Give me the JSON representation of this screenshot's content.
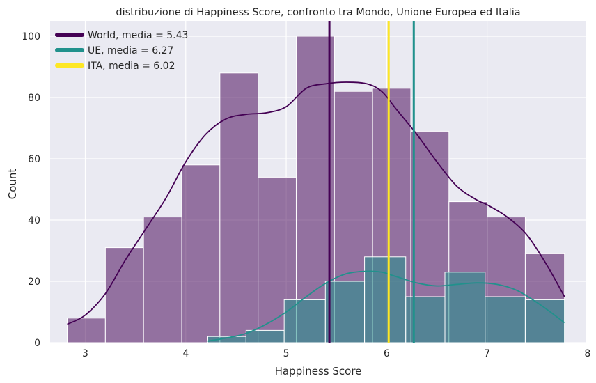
{
  "chart_data": {
    "type": "histogram",
    "title": "distribuzione di Happiness Score, confronto tra Mondo, Unione Europea ed Italia",
    "xlabel": "Happiness Score",
    "ylabel": "Count",
    "xlim": [
      2.65,
      7.98
    ],
    "ylim": [
      0,
      105
    ],
    "xticks": [
      3,
      4,
      5,
      6,
      7,
      8
    ],
    "yticks": [
      0,
      20,
      40,
      60,
      80,
      100
    ],
    "grid": true,
    "legend_position": "top-left",
    "colors": {
      "background": "#eaeaf2",
      "grid": "#ffffff",
      "world_fill": "#440154",
      "eu_fill": "#21918c",
      "ita_line": "#fde725",
      "world_line": "#440154",
      "eu_line": "#21918c"
    },
    "world": {
      "bins": [
        {
          "x0": 2.82,
          "x1": 3.2,
          "count": 8
        },
        {
          "x0": 3.2,
          "x1": 3.58,
          "count": 31
        },
        {
          "x0": 3.58,
          "x1": 3.96,
          "count": 41
        },
        {
          "x0": 3.96,
          "x1": 4.34,
          "count": 58
        },
        {
          "x0": 4.34,
          "x1": 4.72,
          "count": 88
        },
        {
          "x0": 4.72,
          "x1": 5.1,
          "count": 54
        },
        {
          "x0": 5.1,
          "x1": 5.48,
          "count": 100
        },
        {
          "x0": 5.48,
          "x1": 5.86,
          "count": 82
        },
        {
          "x0": 5.86,
          "x1": 6.24,
          "count": 83
        },
        {
          "x0": 6.24,
          "x1": 6.62,
          "count": 69
        },
        {
          "x0": 6.62,
          "x1": 7.0,
          "count": 46
        },
        {
          "x0": 7.0,
          "x1": 7.38,
          "count": 41
        },
        {
          "x0": 7.38,
          "x1": 7.77,
          "count": 29
        }
      ],
      "kde": [
        [
          2.82,
          6
        ],
        [
          3.0,
          9
        ],
        [
          3.2,
          16
        ],
        [
          3.4,
          27
        ],
        [
          3.6,
          37
        ],
        [
          3.8,
          47
        ],
        [
          4.0,
          59
        ],
        [
          4.2,
          68
        ],
        [
          4.4,
          73
        ],
        [
          4.6,
          74.5
        ],
        [
          4.8,
          75
        ],
        [
          5.0,
          77
        ],
        [
          5.2,
          83
        ],
        [
          5.4,
          84.5
        ],
        [
          5.6,
          85
        ],
        [
          5.8,
          84.5
        ],
        [
          5.95,
          82
        ],
        [
          6.1,
          76
        ],
        [
          6.3,
          68
        ],
        [
          6.5,
          59
        ],
        [
          6.7,
          51
        ],
        [
          6.9,
          46.5
        ],
        [
          7.0,
          45
        ],
        [
          7.2,
          41
        ],
        [
          7.4,
          35
        ],
        [
          7.6,
          25
        ],
        [
          7.77,
          15
        ]
      ]
    },
    "eu": {
      "bins": [
        {
          "x0": 4.22,
          "x1": 4.6,
          "count": 2
        },
        {
          "x0": 4.6,
          "x1": 4.98,
          "count": 4
        },
        {
          "x0": 4.98,
          "x1": 5.39,
          "count": 14
        },
        {
          "x0": 5.39,
          "x1": 5.78,
          "count": 20
        },
        {
          "x0": 5.78,
          "x1": 6.19,
          "count": 28
        },
        {
          "x0": 6.19,
          "x1": 6.58,
          "count": 15
        },
        {
          "x0": 6.58,
          "x1": 6.98,
          "count": 23
        },
        {
          "x0": 6.98,
          "x1": 7.38,
          "count": 15
        },
        {
          "x0": 7.38,
          "x1": 7.77,
          "count": 14
        }
      ],
      "kde": [
        [
          4.22,
          0.5
        ],
        [
          4.4,
          1.5
        ],
        [
          4.6,
          3
        ],
        [
          4.8,
          6
        ],
        [
          5.0,
          10
        ],
        [
          5.2,
          15
        ],
        [
          5.4,
          19.5
        ],
        [
          5.6,
          22.5
        ],
        [
          5.8,
          23.3
        ],
        [
          5.95,
          23
        ],
        [
          6.1,
          21.5
        ],
        [
          6.3,
          19.5
        ],
        [
          6.5,
          18.5
        ],
        [
          6.7,
          19
        ],
        [
          6.9,
          19.5
        ],
        [
          7.1,
          19
        ],
        [
          7.3,
          17
        ],
        [
          7.5,
          13
        ],
        [
          7.65,
          9.5
        ],
        [
          7.77,
          6.5
        ]
      ]
    },
    "mean_lines": [
      {
        "name": "World, media = 5.43",
        "x": 5.43,
        "color": "#440154"
      },
      {
        "name": "UE, media = 6.27",
        "x": 6.27,
        "color": "#21918c"
      },
      {
        "name": "ITA, media = 6.02",
        "x": 6.02,
        "color": "#fde725"
      }
    ]
  }
}
